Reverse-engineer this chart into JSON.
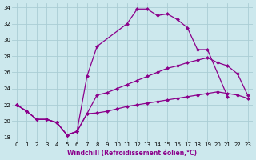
{
  "xlabel": "Windchill (Refroidissement éolien,°C)",
  "background_color": "#cce8ed",
  "grid_color": "#aacdd4",
  "line_color": "#8b008b",
  "xlim": [
    -0.5,
    23.5
  ],
  "ylim": [
    17.5,
    34.5
  ],
  "yticks": [
    18,
    20,
    22,
    24,
    26,
    28,
    30,
    32,
    34
  ],
  "xticks": [
    0,
    1,
    2,
    3,
    4,
    5,
    6,
    7,
    8,
    9,
    10,
    11,
    12,
    13,
    14,
    15,
    16,
    17,
    18,
    19,
    20,
    21,
    22,
    23
  ],
  "s1_x": [
    0,
    1,
    2,
    3,
    4,
    5,
    6,
    7,
    8,
    11,
    12,
    13,
    14,
    15,
    16,
    17,
    18,
    19,
    21
  ],
  "s1_y": [
    22.0,
    21.2,
    20.2,
    20.2,
    19.8,
    18.3,
    18.7,
    25.5,
    29.2,
    32.0,
    33.8,
    33.8,
    33.0,
    33.2,
    32.5,
    31.5,
    28.8,
    28.8,
    23.0
  ],
  "s2_x": [
    0,
    1,
    2,
    3,
    4,
    5,
    6,
    7,
    8,
    9,
    10,
    11,
    12,
    13,
    14,
    15,
    16,
    17,
    18,
    19,
    20,
    21,
    22,
    23
  ],
  "s2_y": [
    22.0,
    21.2,
    20.2,
    20.2,
    19.8,
    18.3,
    18.7,
    20.9,
    23.2,
    23.5,
    24.0,
    24.5,
    25.0,
    25.5,
    26.0,
    26.5,
    26.8,
    27.2,
    27.5,
    27.8,
    27.2,
    26.8,
    25.8,
    23.2
  ],
  "s3_x": [
    0,
    1,
    2,
    3,
    4,
    5,
    6,
    7,
    8,
    9,
    10,
    11,
    12,
    13,
    14,
    15,
    16,
    17,
    18,
    19,
    20,
    21,
    22,
    23
  ],
  "s3_y": [
    22.0,
    21.2,
    20.2,
    20.2,
    19.8,
    18.3,
    18.7,
    20.9,
    21.0,
    21.2,
    21.5,
    21.8,
    22.0,
    22.2,
    22.4,
    22.6,
    22.8,
    23.0,
    23.2,
    23.4,
    23.6,
    23.4,
    23.2,
    22.8
  ]
}
